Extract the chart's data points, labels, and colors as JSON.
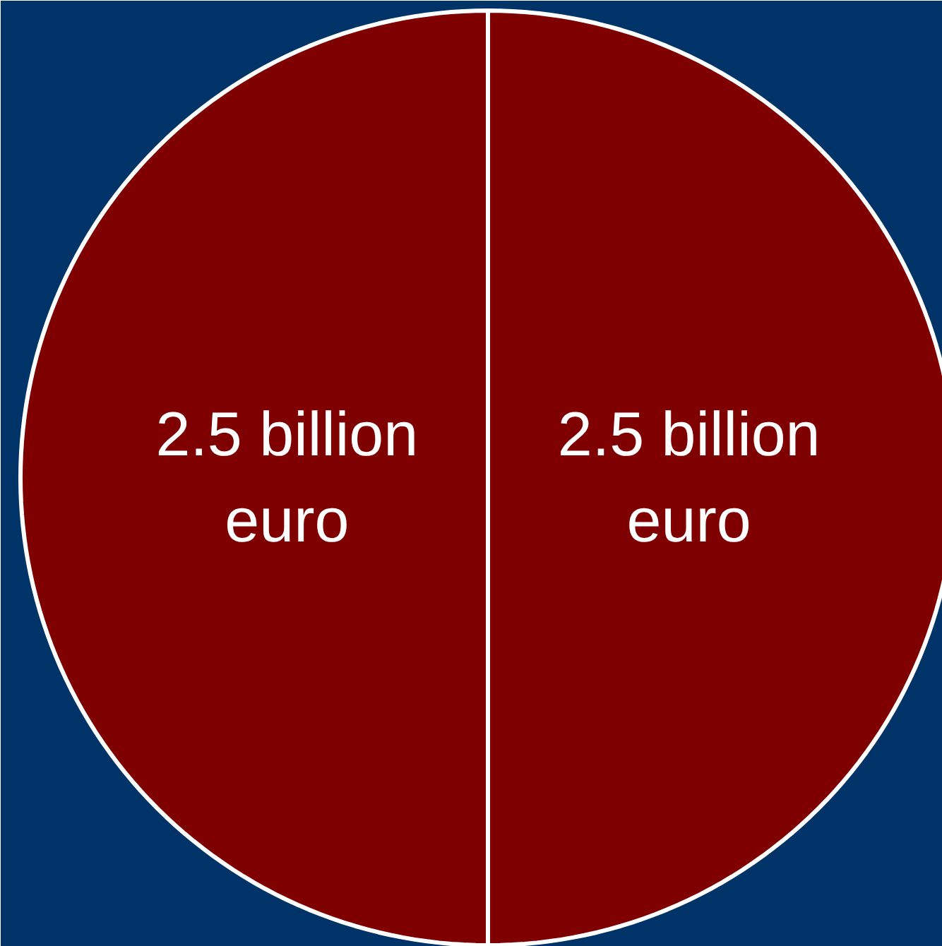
{
  "chart_data": {
    "type": "pie",
    "categories": [
      null,
      null
    ],
    "values": [
      2.5,
      2.5
    ],
    "colors": [
      "#7f0000",
      "#7f0000"
    ],
    "value_labels": [
      "2.5 billion euro",
      "2.5 billion euro"
    ]
  }
}
